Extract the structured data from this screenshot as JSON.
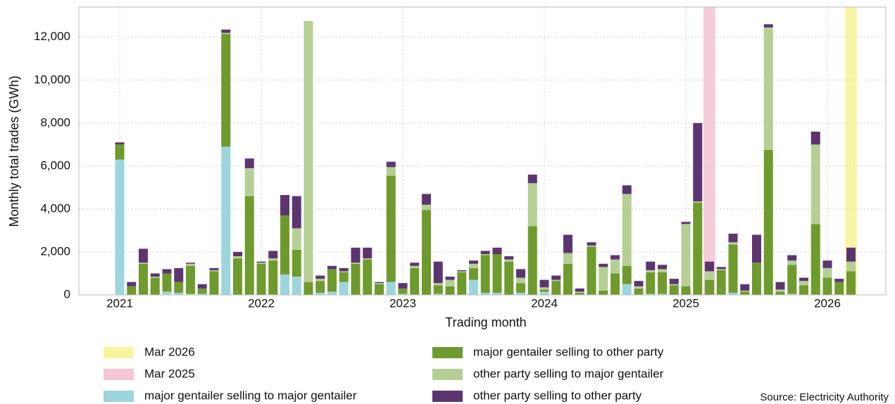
{
  "chart_data": {
    "type": "stacked_bar",
    "x_label": "Trading month",
    "y_label": "Monthly total trades (GWh)",
    "source": "Source: Electricity Authority",
    "categories": [
      "2021",
      null,
      null,
      null,
      null,
      null,
      null,
      null,
      null,
      null,
      null,
      null,
      "2022",
      null,
      null,
      null,
      null,
      null,
      null,
      null,
      null,
      null,
      null,
      null,
      "2023",
      null,
      null,
      null,
      null,
      null,
      null,
      null,
      null,
      null,
      null,
      null,
      "2024",
      null,
      null,
      null,
      null,
      null,
      null,
      null,
      null,
      null,
      null,
      null,
      "2025",
      null,
      null,
      null,
      null,
      null,
      null,
      null,
      null,
      null,
      null,
      null,
      "2026",
      null,
      null
    ],
    "highlights": [
      {
        "name": "Mar 2026",
        "color": "#f7f59b",
        "index": 62
      },
      {
        "name": "Mar 2025",
        "color": "#f4c6d6",
        "index": 50
      }
    ],
    "series": [
      {
        "name": "major gentailer selling to major gentailer",
        "color": "#9dd5dc",
        "values": [
          6300,
          0,
          0,
          0,
          150,
          100,
          50,
          50,
          0,
          6900,
          0,
          0,
          0,
          0,
          950,
          850,
          0,
          100,
          150,
          600,
          0,
          0,
          0,
          600,
          50,
          0,
          0,
          50,
          0,
          0,
          700,
          100,
          100,
          0,
          100,
          0,
          150,
          0,
          0,
          0,
          0,
          0,
          0,
          500,
          0,
          50,
          50,
          0,
          0,
          0,
          0,
          0,
          100,
          0,
          0,
          0,
          0,
          50,
          0,
          0,
          0,
          0,
          0
        ]
      },
      {
        "name": "major gentailer selling to other party",
        "color": "#6f9a2e",
        "values": [
          700,
          400,
          1450,
          800,
          850,
          500,
          1300,
          250,
          1100,
          5250,
          1700,
          4600,
          1450,
          1600,
          2750,
          1250,
          600,
          550,
          1050,
          450,
          1450,
          1650,
          500,
          4950,
          250,
          1250,
          3950,
          400,
          400,
          1050,
          550,
          1750,
          1800,
          1550,
          450,
          3200,
          100,
          650,
          1450,
          100,
          2250,
          200,
          1000,
          850,
          300,
          1000,
          1000,
          450,
          400,
          4300,
          700,
          1150,
          2250,
          150,
          1500,
          6750,
          150,
          1350,
          450,
          3300,
          800,
          600,
          1100
        ]
      },
      {
        "name": "other party selling to major gentailer",
        "color": "#b6cf95",
        "values": [
          0,
          0,
          50,
          50,
          0,
          0,
          100,
          0,
          50,
          50,
          100,
          1300,
          50,
          100,
          0,
          1000,
          12150,
          100,
          0,
          50,
          50,
          50,
          50,
          400,
          0,
          100,
          250,
          100,
          300,
          50,
          200,
          50,
          0,
          100,
          250,
          2000,
          100,
          50,
          500,
          50,
          50,
          1100,
          650,
          3350,
          100,
          100,
          150,
          50,
          2900,
          50,
          400,
          50,
          100,
          50,
          0,
          5700,
          100,
          200,
          200,
          3700,
          450,
          0,
          450
        ]
      },
      {
        "name": "other party selling to other party",
        "color": "#5c3570",
        "values": [
          100,
          200,
          650,
          150,
          200,
          650,
          50,
          200,
          100,
          150,
          200,
          450,
          50,
          350,
          950,
          1500,
          0,
          150,
          150,
          150,
          700,
          500,
          50,
          250,
          250,
          150,
          500,
          1000,
          150,
          50,
          150,
          150,
          300,
          150,
          400,
          400,
          350,
          200,
          850,
          150,
          150,
          150,
          200,
          400,
          250,
          400,
          200,
          250,
          100,
          3650,
          450,
          100,
          400,
          300,
          1300,
          150,
          350,
          250,
          150,
          600,
          350,
          150,
          650
        ]
      }
    ],
    "ylim": [
      0,
      13400
    ],
    "yticks": [
      0,
      {
        "value": 2000,
        "label": "2,000"
      },
      {
        "value": 4000,
        "label": "4,000"
      },
      {
        "value": 6000,
        "label": "6,000"
      },
      {
        "value": 8000,
        "label": "8,000"
      },
      {
        "value": 10000,
        "label": "10,000"
      },
      {
        "value": 12000,
        "label": "12,000"
      }
    ],
    "grid": true
  }
}
